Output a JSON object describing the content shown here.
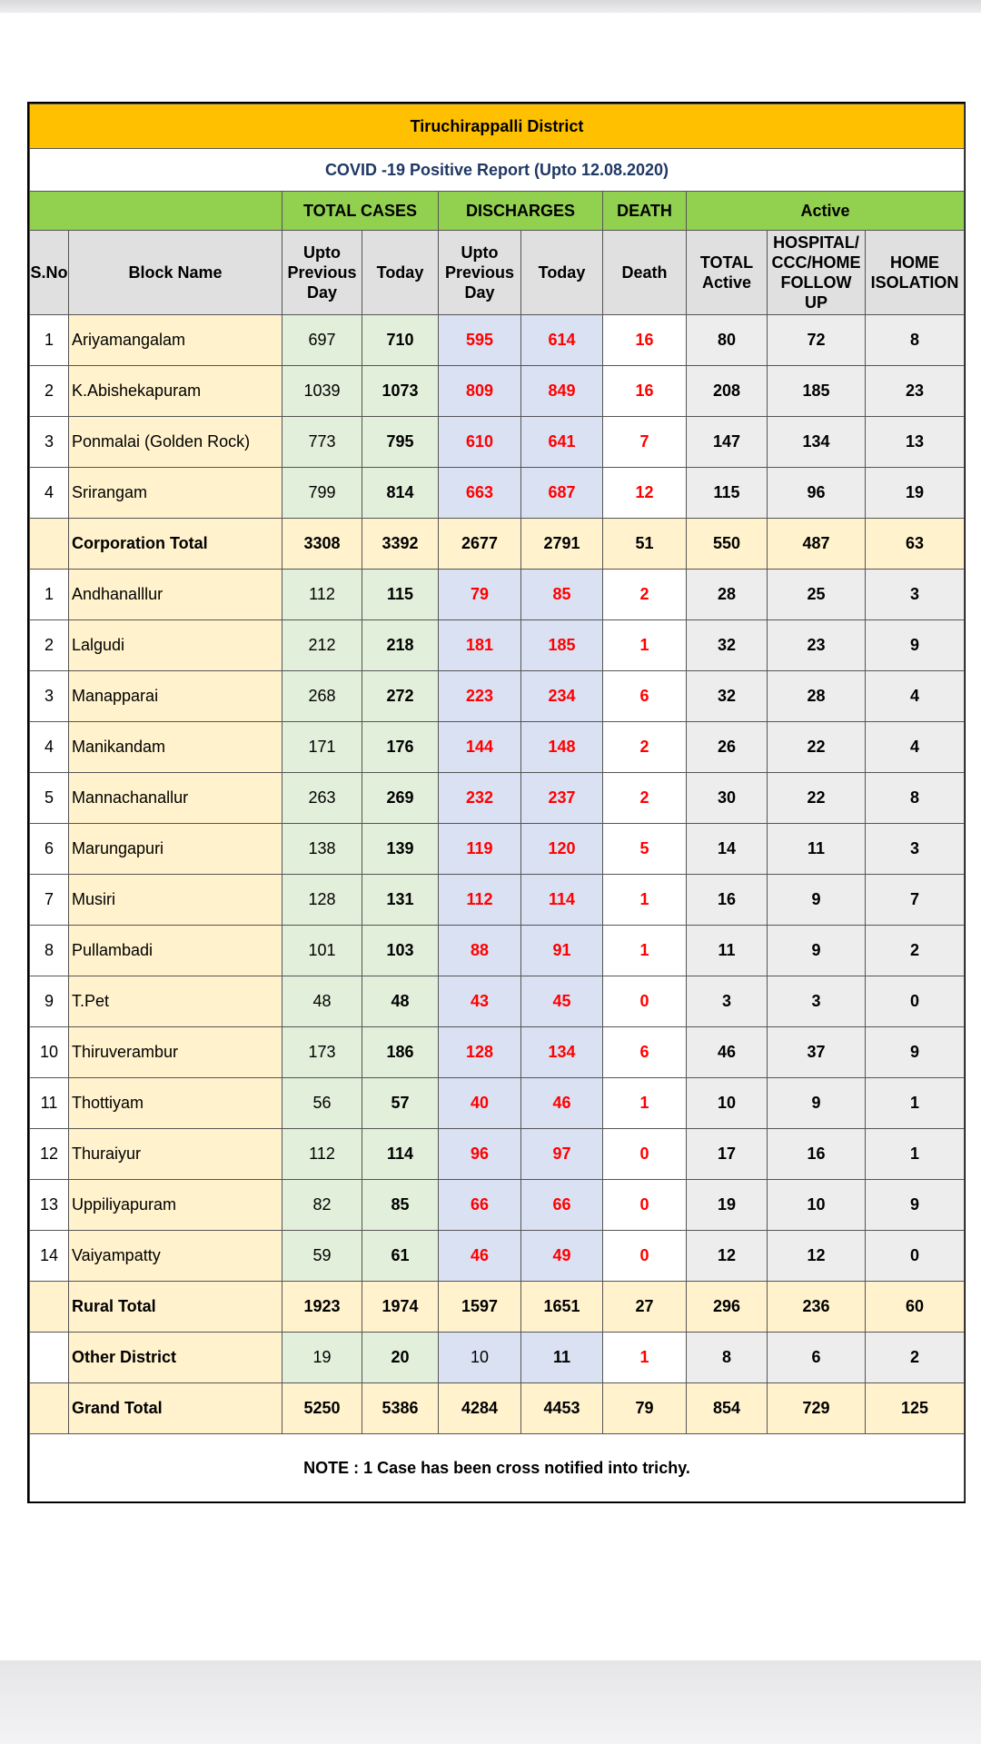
{
  "report": {
    "district": "Tiruchirappalli District",
    "subtitle": "COVID -19 Positive Report (Upto 12.08.2020)",
    "groups": {
      "total_cases": "TOTAL CASES",
      "discharges": "DISCHARGES",
      "death": "DEATH",
      "active": "Active"
    },
    "headers": {
      "sno": "S.No",
      "block_name": "Block Name",
      "upto_previous_day": "Upto Previous Day",
      "today": "Today",
      "death": "Death",
      "total_active": "TOTAL Active",
      "hospital": "HOSPITAL/ CCC/HOME FOLLOW UP",
      "home_isolation": "HOME ISOLATION"
    },
    "corporation_rows": [
      {
        "sno": "1",
        "name": "Ariyamangalam",
        "prev": "697",
        "today": "710",
        "dprev": "595",
        "dtoday": "614",
        "death": "16",
        "active": "80",
        "hospital": "72",
        "home": "8"
      },
      {
        "sno": "2",
        "name": "K.Abishekapuram",
        "prev": "1039",
        "today": "1073",
        "dprev": "809",
        "dtoday": "849",
        "death": "16",
        "active": "208",
        "hospital": "185",
        "home": "23"
      },
      {
        "sno": "3",
        "name": "Ponmalai (Golden Rock)",
        "prev": "773",
        "today": "795",
        "dprev": "610",
        "dtoday": "641",
        "death": "7",
        "active": "147",
        "hospital": "134",
        "home": "13"
      },
      {
        "sno": "4",
        "name": "Srirangam",
        "prev": "799",
        "today": "814",
        "dprev": "663",
        "dtoday": "687",
        "death": "12",
        "active": "115",
        "hospital": "96",
        "home": "19"
      }
    ],
    "corporation_total": {
      "name": "Corporation Total",
      "prev": "3308",
      "today": "3392",
      "dprev": "2677",
      "dtoday": "2791",
      "death": "51",
      "active": "550",
      "hospital": "487",
      "home": "63"
    },
    "rural_rows": [
      {
        "sno": "1",
        "name": "Andhanalllur",
        "prev": "112",
        "today": "115",
        "dprev": "79",
        "dtoday": "85",
        "death": "2",
        "active": "28",
        "hospital": "25",
        "home": "3"
      },
      {
        "sno": "2",
        "name": "Lalgudi",
        "prev": "212",
        "today": "218",
        "dprev": "181",
        "dtoday": "185",
        "death": "1",
        "active": "32",
        "hospital": "23",
        "home": "9"
      },
      {
        "sno": "3",
        "name": "Manapparai",
        "prev": "268",
        "today": "272",
        "dprev": "223",
        "dtoday": "234",
        "death": "6",
        "active": "32",
        "hospital": "28",
        "home": "4"
      },
      {
        "sno": "4",
        "name": "Manikandam",
        "prev": "171",
        "today": "176",
        "dprev": "144",
        "dtoday": "148",
        "death": "2",
        "active": "26",
        "hospital": "22",
        "home": "4"
      },
      {
        "sno": "5",
        "name": "Mannachanallur",
        "prev": "263",
        "today": "269",
        "dprev": "232",
        "dtoday": "237",
        "death": "2",
        "active": "30",
        "hospital": "22",
        "home": "8"
      },
      {
        "sno": "6",
        "name": "Marungapuri",
        "prev": "138",
        "today": "139",
        "dprev": "119",
        "dtoday": "120",
        "death": "5",
        "active": "14",
        "hospital": "11",
        "home": "3"
      },
      {
        "sno": "7",
        "name": "Musiri",
        "prev": "128",
        "today": "131",
        "dprev": "112",
        "dtoday": "114",
        "death": "1",
        "active": "16",
        "hospital": "9",
        "home": "7"
      },
      {
        "sno": "8",
        "name": "Pullambadi",
        "prev": "101",
        "today": "103",
        "dprev": "88",
        "dtoday": "91",
        "death": "1",
        "active": "11",
        "hospital": "9",
        "home": "2"
      },
      {
        "sno": "9",
        "name": "T.Pet",
        "prev": "48",
        "today": "48",
        "dprev": "43",
        "dtoday": "45",
        "death": "0",
        "active": "3",
        "hospital": "3",
        "home": "0"
      },
      {
        "sno": "10",
        "name": "Thiruverambur",
        "prev": "173",
        "today": "186",
        "dprev": "128",
        "dtoday": "134",
        "death": "6",
        "active": "46",
        "hospital": "37",
        "home": "9"
      },
      {
        "sno": "11",
        "name": "Thottiyam",
        "prev": "56",
        "today": "57",
        "dprev": "40",
        "dtoday": "46",
        "death": "1",
        "active": "10",
        "hospital": "9",
        "home": "1"
      },
      {
        "sno": "12",
        "name": "Thuraiyur",
        "prev": "112",
        "today": "114",
        "dprev": "96",
        "dtoday": "97",
        "death": "0",
        "active": "17",
        "hospital": "16",
        "home": "1"
      },
      {
        "sno": "13",
        "name": "Uppiliyapuram",
        "prev": "82",
        "today": "85",
        "dprev": "66",
        "dtoday": "66",
        "death": "0",
        "active": "19",
        "hospital": "10",
        "home": "9"
      },
      {
        "sno": "14",
        "name": "Vaiyampatty",
        "prev": "59",
        "today": "61",
        "dprev": "46",
        "dtoday": "49",
        "death": "0",
        "active": "12",
        "hospital": "12",
        "home": "0"
      }
    ],
    "rural_total": {
      "name": "Rural Total",
      "prev": "1923",
      "today": "1974",
      "dprev": "1597",
      "dtoday": "1651",
      "death": "27",
      "active": "296",
      "hospital": "236",
      "home": "60"
    },
    "other_district": {
      "name": "Other District",
      "prev": "19",
      "today": "20",
      "dprev": "10",
      "dtoday": "11",
      "death": "1",
      "active": "8",
      "hospital": "6",
      "home": "2"
    },
    "grand_total": {
      "name": "Grand Total",
      "prev": "5250",
      "today": "5386",
      "dprev": "4284",
      "dtoday": "4453",
      "death": "79",
      "active": "854",
      "hospital": "729",
      "home": "125"
    },
    "note": "NOTE : 1 Case has been cross notified into trichy."
  },
  "colors": {
    "title_bg": "#ffc000",
    "group_bg": "#92d050",
    "header_bg": "#e0e0e0",
    "name_bg": "#fff2cc",
    "cases_bg": "#e2efda",
    "discharge_bg": "#d9e1f2",
    "active_bg": "#ededed",
    "alert_text": "#ff0000",
    "subtitle_text": "#1f3864"
  }
}
